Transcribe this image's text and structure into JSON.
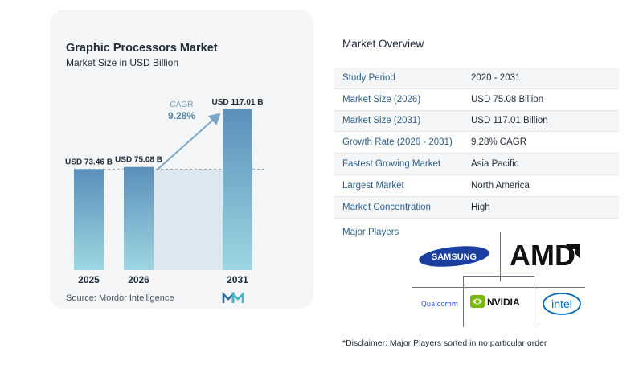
{
  "chart": {
    "title": "Graphic Processors Market",
    "subtitle": "Market Size in USD Billion",
    "source": "Source:  Mordor Intelligence"
  },
  "chart_data": {
    "type": "bar",
    "title": "Graphic Processors Market",
    "subtitle": "Market Size in USD Billion",
    "categories": [
      "2025",
      "2026",
      "2031"
    ],
    "values": [
      73.46,
      75.08,
      117.01
    ],
    "data_labels": [
      "USD 73.46 B",
      "USD 75.08 B",
      "USD 117.01 B"
    ],
    "annotation": {
      "label": "CAGR",
      "value": "9.28%"
    },
    "ylim": [
      0,
      117.01
    ],
    "grid": false,
    "colors": {
      "bar_top": "#5b8fba",
      "bar_bottom": "#9ed6e2",
      "arrow": "#7aa6c9",
      "shade": "#dde7f0"
    }
  },
  "overview": {
    "title": "Market Overview",
    "rows": [
      {
        "label": "Study Period",
        "value": "2020 - 2031"
      },
      {
        "label": "Market Size (2026)",
        "value": "USD 75.08 Billion"
      },
      {
        "label": "Market Size (2031)",
        "value": "USD 117.01 Billion"
      },
      {
        "label": "Growth Rate (2026 - 2031)",
        "value": "9.28% CAGR"
      },
      {
        "label": "Fastest Growing Market",
        "value": "Asia Pacific"
      },
      {
        "label": "Largest Market",
        "value": "North America"
      },
      {
        "label": "Market Concentration",
        "value": "High"
      }
    ]
  },
  "players": {
    "title": "Major Players",
    "logos": [
      "SAMSUNG",
      "AMD",
      "Qualcomm",
      "NVIDIA",
      "intel"
    ]
  },
  "disclaimer": "*Disclaimer: Major Players sorted in no particular order"
}
